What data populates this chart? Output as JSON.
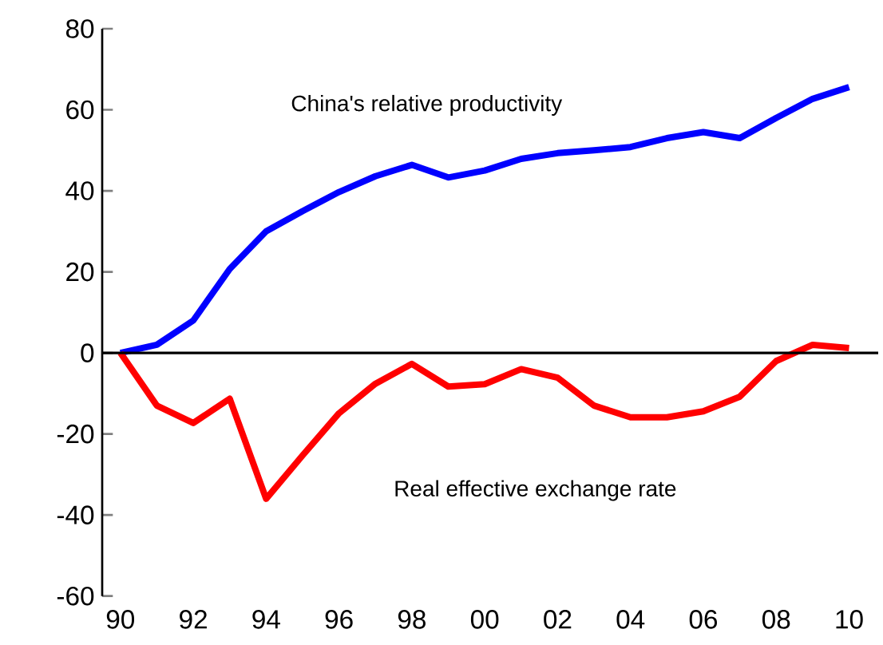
{
  "chart_data": {
    "type": "line",
    "x": [
      1990,
      1991,
      1992,
      1993,
      1994,
      1995,
      1996,
      1997,
      1998,
      1999,
      2000,
      2001,
      2002,
      2003,
      2004,
      2005,
      2006,
      2007,
      2008,
      2009,
      2010
    ],
    "series": [
      {
        "name": "China's relative productivity",
        "color": "#0000ff",
        "values": [
          0,
          2,
          8,
          20.7,
          30,
          35,
          39.7,
          43.6,
          46.4,
          43.3,
          45,
          47.9,
          49.3,
          50,
          50.8,
          53,
          54.5,
          53,
          58,
          62.7,
          65.6
        ]
      },
      {
        "name": "Real effective exchange rate",
        "color": "#ff0000",
        "values": [
          0,
          -13,
          -17.3,
          -11.3,
          -36,
          -25.3,
          -14.9,
          -7.6,
          -2.7,
          -8.3,
          -7.7,
          -4,
          -6.1,
          -13,
          -15.9,
          -15.9,
          -14.4,
          -10.8,
          -2,
          2,
          1.2
        ]
      }
    ],
    "xlim": [
      1989.5,
      2010.8
    ],
    "xticks": [
      {
        "value": 1990,
        "label": "90"
      },
      {
        "value": 1992,
        "label": "92"
      },
      {
        "value": 1994,
        "label": "94"
      },
      {
        "value": 1996,
        "label": "96"
      },
      {
        "value": 1998,
        "label": "98"
      },
      {
        "value": 2000,
        "label": "00"
      },
      {
        "value": 2002,
        "label": "02"
      },
      {
        "value": 2004,
        "label": "04"
      },
      {
        "value": 2006,
        "label": "06"
      },
      {
        "value": 2008,
        "label": "08"
      },
      {
        "value": 2010,
        "label": "10"
      }
    ],
    "ylim": [
      -60,
      80
    ],
    "yticks": [
      -60,
      -40,
      -20,
      0,
      20,
      40,
      60,
      80
    ],
    "ref_lines": [
      {
        "axis": "y",
        "value": 0,
        "color": "#000000"
      }
    ],
    "marker": "none",
    "line_style": "solid",
    "grid": false
  }
}
